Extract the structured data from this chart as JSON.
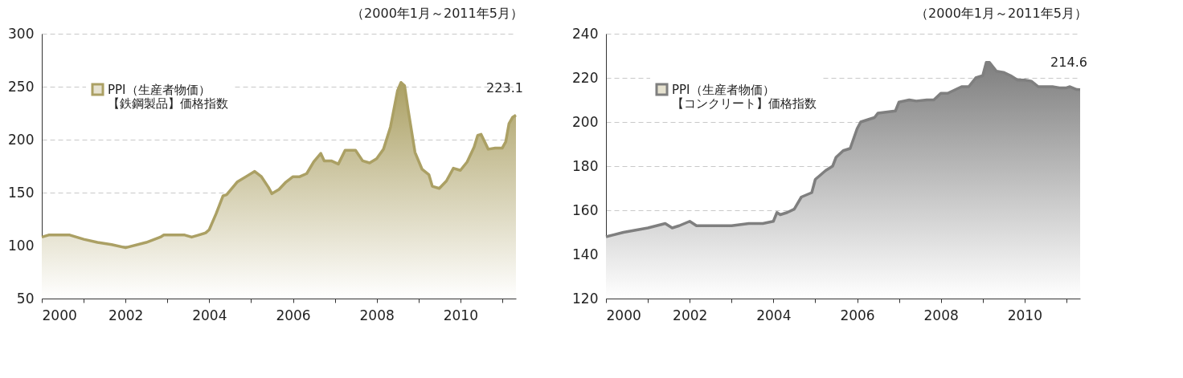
{
  "chart_data": [
    {
      "type": "area",
      "subtitle": "（2000年1月～2011年5月）",
      "legend": "top left",
      "grid": "y",
      "xlim": [
        "2000-01",
        "2011-05"
      ],
      "ylim": [
        50,
        300
      ],
      "yticks": [
        50,
        100,
        150,
        200,
        250,
        300
      ],
      "xticks": [
        "2000",
        {
          "value": "2001",
          "label": null
        },
        "2002",
        {
          "value": "2003",
          "label": null
        },
        "2004",
        {
          "value": "2005",
          "label": null
        },
        "2006",
        {
          "value": "2007",
          "label": null
        },
        "2008",
        {
          "value": "2009",
          "label": null
        },
        "2010",
        {
          "value": "2011",
          "label": null
        }
      ],
      "series": [
        {
          "name": "PPI（生産者物価）【鉄鋼製品】価格指数",
          "color": "#aba064",
          "x": [
            "2000-01",
            "2000-03",
            "2000-09",
            "2001-01",
            "2001-05",
            "2001-09",
            "2002-01",
            "2002-07",
            "2002-11",
            "2002-12",
            "2003-06",
            "2003-08",
            "2003-10",
            "2003-12",
            "2004-01",
            "2004-03",
            "2004-05",
            "2004-06",
            "2004-09",
            "2004-12",
            "2005-02",
            "2005-04",
            "2005-06",
            "2005-07",
            "2005-09",
            "2005-11",
            "2006-01",
            "2006-03",
            "2006-05",
            "2006-07",
            "2006-09",
            "2006-10",
            "2006-12",
            "2007-02",
            "2007-04",
            "2007-07",
            "2007-09",
            "2007-11",
            "2008-01",
            "2008-03",
            "2008-05",
            "2008-07",
            "2008-08",
            "2008-09",
            "2008-10",
            "2008-12",
            "2009-02",
            "2009-04",
            "2009-05",
            "2009-07",
            "2009-09",
            "2009-11",
            "2010-01",
            "2010-03",
            "2010-05",
            "2010-06",
            "2010-07",
            "2010-09",
            "2010-11",
            "2011-01",
            "2011-02",
            "2011-03",
            "2011-04",
            "2011-05"
          ],
          "values": [
            108,
            110,
            110,
            106,
            103,
            101,
            98,
            103,
            108,
            110,
            110,
            108,
            110,
            112,
            115,
            130,
            147,
            148,
            160,
            166,
            170,
            165,
            155,
            149,
            153,
            160,
            165,
            165,
            168,
            179,
            187,
            180,
            180,
            177,
            190,
            190,
            180,
            178,
            182,
            191,
            212,
            246,
            254,
            251,
            229,
            188,
            172,
            167,
            156,
            154,
            161,
            173,
            171,
            179,
            193,
            204,
            205,
            191,
            192,
            192,
            198,
            215,
            221,
            223.1
          ],
          "value_labels": [
            null,
            null,
            null,
            null,
            null,
            null,
            null,
            null,
            null,
            null,
            null,
            null,
            null,
            null,
            null,
            null,
            null,
            null,
            null,
            null,
            null,
            null,
            null,
            null,
            null,
            null,
            null,
            null,
            null,
            null,
            null,
            null,
            null,
            null,
            null,
            null,
            null,
            null,
            null,
            null,
            null,
            null,
            null,
            null,
            null,
            null,
            null,
            null,
            null,
            null,
            null,
            null,
            null,
            null,
            null,
            null,
            null,
            null,
            null,
            null,
            null,
            null,
            null,
            "223.1"
          ]
        }
      ]
    },
    {
      "type": "area",
      "subtitle": "（2000年1月～2011年5月）",
      "legend": "top left",
      "grid": "y",
      "xlim": [
        "2000-01",
        "2011-05"
      ],
      "ylim": [
        120,
        240
      ],
      "yticks": [
        120,
        140,
        160,
        180,
        200,
        220,
        240
      ],
      "xticks": [
        "2000",
        {
          "value": "2001",
          "label": null
        },
        "2002",
        {
          "value": "2003",
          "label": null
        },
        "2004",
        {
          "value": "2005",
          "label": null
        },
        "2006",
        {
          "value": "2007",
          "label": null
        },
        "2008",
        {
          "value": "2009",
          "label": null
        },
        "2010",
        {
          "value": "2011",
          "label": null
        }
      ],
      "series": [
        {
          "name": "PPI（生産者物価）【コンクリート】価格指数",
          "color": "#7f7f7f",
          "x": [
            "2000-01",
            "2000-06",
            "2001-01",
            "2001-06",
            "2001-08",
            "2001-10",
            "2002-01",
            "2002-03",
            "2003-01",
            "2003-06",
            "2003-10",
            "2004-01",
            "2004-02",
            "2004-03",
            "2004-05",
            "2004-07",
            "2004-09",
            "2004-12",
            "2005-01",
            "2005-04",
            "2005-06",
            "2005-07",
            "2005-09",
            "2005-11",
            "2006-01",
            "2006-02",
            "2006-04",
            "2006-06",
            "2006-07",
            "2006-12",
            "2007-01",
            "2007-04",
            "2007-06",
            "2007-09",
            "2007-11",
            "2008-01",
            "2008-03",
            "2008-07",
            "2008-09",
            "2008-11",
            "2009-01",
            "2009-02",
            "2009-03",
            "2009-05",
            "2009-07",
            "2009-09",
            "2009-11",
            "2010-01",
            "2010-03",
            "2010-05",
            "2010-09",
            "2010-11",
            "2011-01",
            "2011-02",
            "2011-04",
            "2011-05"
          ],
          "values": [
            148,
            150,
            152,
            154,
            152,
            153,
            155,
            153,
            153,
            154,
            154,
            155,
            159,
            158,
            159,
            160.5,
            166,
            168,
            174,
            178,
            180,
            184,
            187,
            188,
            197,
            200,
            201,
            202,
            204,
            205,
            209,
            210,
            209.5,
            210,
            210,
            213,
            213,
            216,
            216,
            220,
            221,
            227,
            227,
            223,
            222.5,
            221,
            219,
            219,
            218.5,
            216,
            216,
            215.5,
            215.5,
            216,
            214.7,
            214.6
          ],
          "value_labels": [
            null,
            null,
            null,
            null,
            null,
            null,
            null,
            null,
            null,
            null,
            null,
            null,
            null,
            null,
            null,
            null,
            null,
            null,
            null,
            null,
            null,
            null,
            null,
            null,
            null,
            null,
            null,
            null,
            null,
            null,
            null,
            null,
            null,
            null,
            null,
            null,
            null,
            null,
            null,
            null,
            null,
            null,
            null,
            null,
            null,
            null,
            null,
            null,
            null,
            null,
            null,
            null,
            null,
            null,
            null,
            "214.6"
          ]
        }
      ]
    }
  ]
}
